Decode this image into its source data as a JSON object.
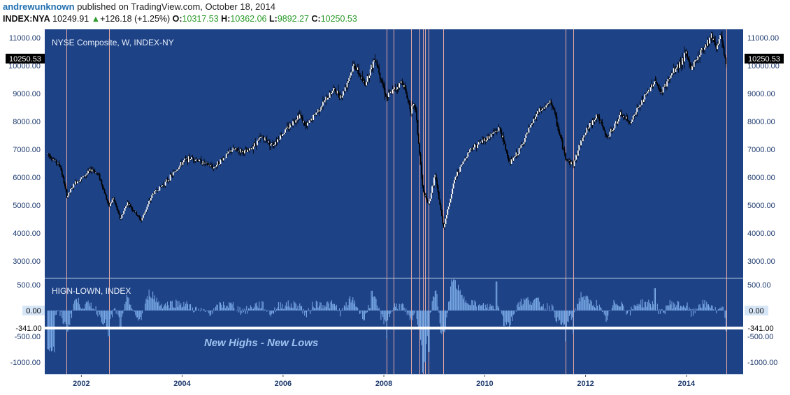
{
  "header": {
    "author": "andrewunknown",
    "published_text": "published on TradingView.com, October 18, 2014",
    "symbol": "INDEX:NYA",
    "last": "10249.91",
    "change": "+126.18 (+1.25%)",
    "open_label": "O:",
    "open": "10317.53",
    "high_label": "H:",
    "high": "10362.06",
    "low_label": "L:",
    "low": "9892.27",
    "close_label": "C:",
    "close": "10250.53"
  },
  "colors": {
    "background": "#1e4286",
    "candle_up": "#ffffff",
    "candle_down": "#000000",
    "marker_line": "#e8a9a3",
    "indicator_line": "#7fb0ec",
    "threshold_line": "#ffffff",
    "axis_text": "#1e3a6e",
    "annotation_text": "#9ec3f0"
  },
  "chart_data": [
    {
      "type": "candlestick",
      "title": "NYSE Composite, W, INDEX-NY",
      "frequency": "weekly",
      "x_range": [
        "2001-05-01",
        "2014-10-17"
      ],
      "ylim": [
        2400,
        11300
      ],
      "y_ticks": [
        "3000.00",
        "4000.00",
        "5000.00",
        "6000.00",
        "7000.00",
        "8000.00",
        "9000.00",
        "10000.00",
        "11000.00"
      ],
      "last_price_label": "10250.53",
      "path_points": [
        [
          "2001-05-01",
          6850
        ],
        [
          "2001-08-01",
          6400
        ],
        [
          "2001-09-20",
          5300
        ],
        [
          "2001-11-15",
          5800
        ],
        [
          "2002-01-10",
          6000
        ],
        [
          "2002-03-20",
          6300
        ],
        [
          "2002-05-10",
          6050
        ],
        [
          "2002-07-20",
          4950
        ],
        [
          "2002-08-20",
          5250
        ],
        [
          "2002-10-10",
          4500
        ],
        [
          "2002-12-01",
          5100
        ],
        [
          "2003-03-10",
          4450
        ],
        [
          "2003-06-01",
          5400
        ],
        [
          "2003-09-01",
          5800
        ],
        [
          "2004-01-15",
          6600
        ],
        [
          "2004-03-15",
          6700
        ],
        [
          "2004-08-15",
          6350
        ],
        [
          "2004-12-31",
          7000
        ],
        [
          "2005-04-15",
          6900
        ],
        [
          "2005-08-01",
          7450
        ],
        [
          "2005-10-15",
          7150
        ],
        [
          "2006-05-01",
          8250
        ],
        [
          "2006-06-15",
          7800
        ],
        [
          "2006-12-31",
          9150
        ],
        [
          "2007-03-01",
          8900
        ],
        [
          "2007-06-01",
          10050
        ],
        [
          "2007-08-15",
          9300
        ],
        [
          "2007-10-30",
          10300
        ],
        [
          "2008-01-20",
          8850
        ],
        [
          "2008-05-15",
          9450
        ],
        [
          "2008-07-15",
          8400
        ],
        [
          "2008-08-15",
          8600
        ],
        [
          "2008-10-10",
          5500
        ],
        [
          "2008-11-20",
          5000
        ],
        [
          "2009-01-05",
          6100
        ],
        [
          "2009-03-09",
          4200
        ],
        [
          "2009-06-01",
          6000
        ],
        [
          "2009-09-15",
          7000
        ],
        [
          "2010-01-15",
          7400
        ],
        [
          "2010-04-20",
          7750
        ],
        [
          "2010-07-01",
          6500
        ],
        [
          "2010-09-01",
          6900
        ],
        [
          "2011-01-15",
          8300
        ],
        [
          "2011-04-30",
          8700
        ],
        [
          "2011-08-08",
          6700
        ],
        [
          "2011-10-04",
          6450
        ],
        [
          "2011-12-15",
          7500
        ],
        [
          "2012-03-25",
          8250
        ],
        [
          "2012-06-04",
          7400
        ],
        [
          "2012-09-15",
          8250
        ],
        [
          "2012-11-15",
          7950
        ],
        [
          "2013-05-20",
          9500
        ],
        [
          "2013-06-24",
          9000
        ],
        [
          "2013-10-01",
          9800
        ],
        [
          "2013-12-31",
          10400
        ],
        [
          "2014-02-03",
          9900
        ],
        [
          "2014-04-15",
          10500
        ],
        [
          "2014-07-03",
          11100
        ],
        [
          "2014-08-07",
          10650
        ],
        [
          "2014-09-05",
          11100
        ],
        [
          "2014-10-15",
          10000
        ],
        [
          "2014-10-17",
          10250
        ]
      ]
    },
    {
      "type": "bar",
      "title": "HIGN-LOWN, INDEX",
      "ylim": [
        -1230,
        620
      ],
      "y_ticks": [
        "500.00",
        "0.00",
        "-500.00",
        "-1000.00"
      ],
      "last_value_label": "0.00",
      "threshold_label": "-341.00",
      "threshold": -341,
      "annotation": "New Highs - New Lows",
      "spikes": [
        [
          "2008-10-10",
          -1200
        ],
        [
          "2008-10-24",
          -1000
        ],
        [
          "2008-11-21",
          -800
        ],
        [
          "2008-01-22",
          -550
        ],
        [
          "2011-08-08",
          -600
        ],
        [
          "2011-10-03",
          -450
        ],
        [
          "2002-07-19",
          -500
        ],
        [
          "2014-10-15",
          -400
        ],
        [
          "2002-10-10",
          -350
        ],
        [
          "2009-03-06",
          -400
        ],
        [
          "2010-05-21",
          -300
        ],
        [
          "2010-03-26",
          560
        ],
        [
          "2007-10-05",
          380
        ],
        [
          "2013-05-17",
          430
        ]
      ]
    }
  ],
  "x_axis": {
    "tick_labels": [
      "2002",
      "2004",
      "2006",
      "2008",
      "2010",
      "2012",
      "2014"
    ]
  },
  "marker_lines": [
    "2001-09-17",
    "2002-07-19",
    "2008-01-22",
    "2008-03-14",
    "2008-07-15",
    "2008-09-15",
    "2008-10-10",
    "2008-10-24",
    "2008-11-20",
    "2009-03-06",
    "2011-08-08",
    "2011-10-03",
    "2014-10-15"
  ]
}
